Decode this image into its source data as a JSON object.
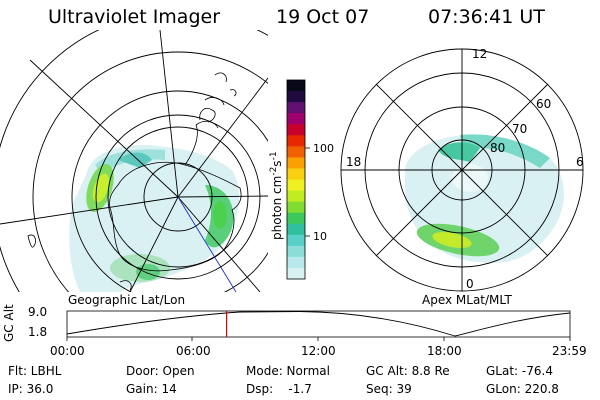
{
  "header": {
    "instrument": "Ultraviolet Imager",
    "date": "19 Oct 07",
    "time": "07:36:41 UT"
  },
  "left_panel": {
    "caption": "Geographic Lat/Lon"
  },
  "right_panel": {
    "caption": "Apex MLat/MLT",
    "mlt_labels": [
      "12",
      "18",
      "6",
      "0"
    ],
    "lat_labels": [
      "60",
      "70",
      "80"
    ]
  },
  "colorbar": {
    "unit_text": "photon cm",
    "unit_sup1": "-2",
    "unit_s": "s",
    "unit_sup2": "-1",
    "ticks": [
      "100",
      "10"
    ],
    "colors": [
      "#d8f2f4",
      "#b8e8ec",
      "#8cdcd8",
      "#58d0c8",
      "#30c0a0",
      "#3cc85a",
      "#80dc30",
      "#c0ec20",
      "#f0f020",
      "#f8d010",
      "#f8a000",
      "#f06000",
      "#e82800",
      "#c8002c",
      "#a0006c",
      "#601070",
      "#200840",
      "#080818"
    ]
  },
  "altitude_plot": {
    "ylabel": "GC Alt",
    "yticks": [
      "9.0",
      "1.8"
    ],
    "xticks": [
      "00:00",
      "06:00",
      "12:00",
      "18:00",
      "23:59"
    ],
    "current_time_hours": 7.61
  },
  "info": {
    "filter": "Flt: LBHL",
    "ip": "IP: 36.0",
    "door": "Door: Open",
    "gain": "Gain: 14",
    "mode": "Mode: Normal",
    "dsp": "Dsp:    -1.7",
    "gc_alt": "GC Alt: 8.8 Re",
    "seq": "Seq: 39",
    "glat": "GLat: -76.4",
    "glon": "GLon: 220.8"
  }
}
